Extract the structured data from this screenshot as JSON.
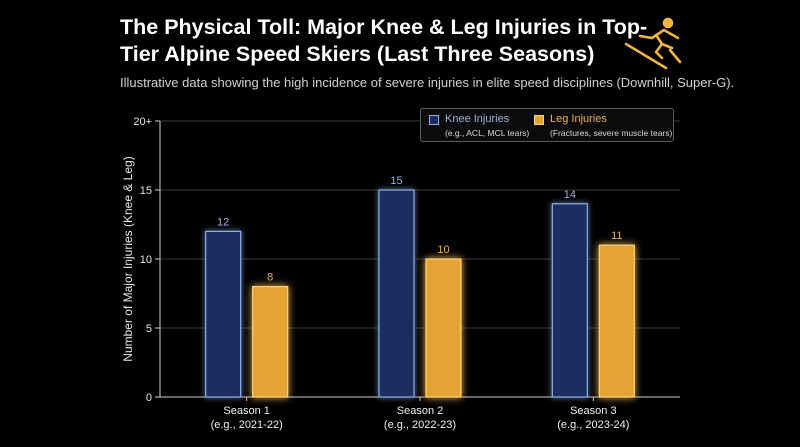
{
  "header": {
    "title": "The Physical Toll: Major Knee & Leg Injuries in Top-Tier Alpine Speed Skiers (Last Three Seasons)",
    "subtitle": "Illustrative data showing the high incidence of severe injuries in elite speed disciplines (Downhill, Super-G)."
  },
  "icon": "downhill-skier-icon",
  "colors": {
    "knee_fill": "#1b2d5e",
    "knee_stroke": "#8eaee8",
    "knee_text": "#9fb4de",
    "leg_fill": "#e3a336",
    "leg_stroke": "#ffd27a",
    "leg_text": "#f0b048",
    "grid": "#3a3a3a",
    "axis": "#cfcfcf"
  },
  "legend": {
    "position": "top-right",
    "items": [
      {
        "name": "Knee Injuries",
        "note": "(e.g., ACL, MCL tears)"
      },
      {
        "name": "Leg Injuries",
        "note": "(Fractures, severe muscle tears)"
      }
    ]
  },
  "chart_data": {
    "type": "bar",
    "categories": [
      {
        "label": "Season 1",
        "sublabel": "(e.g., 2021-22)"
      },
      {
        "label": "Season 2",
        "sublabel": "(e.g., 2022-23)"
      },
      {
        "label": "Season 3",
        "sublabel": "(e.g., 2023-24)"
      }
    ],
    "series": [
      {
        "name": "Knee Injuries",
        "values": [
          12,
          15,
          14
        ]
      },
      {
        "name": "Leg Injuries",
        "values": [
          8,
          10,
          11
        ]
      }
    ],
    "title": "The Physical Toll: Major Knee & Leg Injuries in Top-Tier Alpine Speed Skiers (Last Three Seasons)",
    "ylabel": "Number of Major Injuries (Knee & Leg)",
    "ylim": [
      0,
      20
    ],
    "yticks": [
      {
        "value": 0,
        "label": "0"
      },
      {
        "value": 5,
        "label": "5"
      },
      {
        "value": 10,
        "label": "10"
      },
      {
        "value": 15,
        "label": "15"
      },
      {
        "value": 20,
        "label": "20+"
      }
    ],
    "grid": true,
    "legend": "top-right"
  }
}
